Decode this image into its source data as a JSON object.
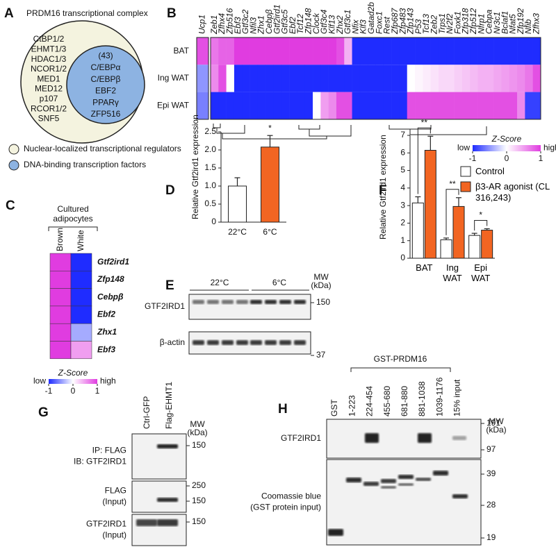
{
  "panels": {
    "A": {
      "letter": "A",
      "title": "PRDM16 transcriptional complex",
      "regulators": [
        "CtBP1/2",
        "EHMT1/3",
        "HDAC1/3",
        "NCOR1/2",
        "MED1",
        "MED12",
        "p107",
        "RCOR1/2",
        "SNF5"
      ],
      "factors": [
        "(43)",
        "C/EBPα",
        "C/EBPβ",
        "EBF2",
        "PPARγ",
        "ZFP516"
      ],
      "legend": [
        "Nuclear-localized transcriptional regulators",
        "DNA-binding transcription factors"
      ]
    },
    "B": {
      "letter": "B",
      "genes": [
        "Ucp1",
        "Zeb1",
        "Zfhx4",
        "Zfp516",
        "Ebf3",
        "Gtf3c2",
        "Nfil3",
        "Zhx1",
        "Cebpβ",
        "Gtf2ird1",
        "Gtf3c5",
        "Ebf2",
        "Tcf12",
        "Zfp148",
        "Clock",
        "Gtf3c4",
        "Klf13",
        "Zhx2",
        "Gtf3c1",
        "Nfix",
        "Klf3",
        "Gatad2b",
        "Foxc1",
        "Rest",
        "Zfp687",
        "Zfp483",
        "Zfp143",
        "P53",
        "Tcf13",
        "Zeb2",
        "Trps1",
        "Nr2f2",
        "Foxk1",
        "Zfp318",
        "Zfp512",
        "Nfrp1",
        "Cebpa",
        "Nr3c1",
        "Bclaf1",
        "Nfat5",
        "Zfp192",
        "Nfib",
        "Zfhx3"
      ],
      "rows": [
        "BAT",
        "Ing WAT",
        "Epi WAT"
      ],
      "values": [
        [
          0.9,
          0.7,
          0.8,
          0.8,
          1,
          1,
          1,
          1,
          1,
          1,
          1,
          1,
          1,
          1,
          1,
          1,
          1,
          0.9,
          0.4,
          -1,
          -1,
          -1,
          -1,
          -1,
          -1,
          -1,
          -1,
          -1,
          -1,
          -1,
          -1,
          -1,
          -1,
          -1,
          -1,
          -1,
          -1,
          -1,
          -1,
          -1,
          -1,
          -1,
          -1
        ],
        [
          -0.5,
          0.6,
          0.9,
          0,
          -1,
          -1,
          -1,
          -1,
          -1,
          -1,
          -1,
          -1,
          -1,
          -1,
          -1,
          -1,
          -1,
          -1,
          -1,
          -1,
          -1,
          -1,
          -1,
          -1,
          -1,
          -1,
          0,
          0.05,
          0.1,
          0.15,
          0.2,
          0.2,
          0.25,
          0.3,
          0.35,
          0.4,
          0.4,
          0.45,
          0.5,
          0.55,
          0.6,
          0.7,
          0.9
        ],
        [
          -0.6,
          -1,
          -1,
          -1,
          -1,
          -1,
          -1,
          -1,
          -1,
          -1,
          -1,
          -1,
          -1,
          -1,
          0,
          0.5,
          0.6,
          0.9,
          0.9,
          -1,
          -1,
          -1,
          -1,
          -1,
          -1,
          -1,
          0.9,
          0.9,
          0.9,
          0.9,
          0.9,
          0.9,
          0.9,
          0.9,
          0.9,
          0.9,
          0.9,
          0.9,
          0.9,
          0.9,
          0.6,
          -0.9,
          -0.9
        ]
      ],
      "colorbar": {
        "title": "Z-Score",
        "low": "low",
        "high": "high",
        "ticks": [
          -1,
          0,
          1
        ]
      }
    },
    "C": {
      "letter": "C",
      "header": [
        "Cultured",
        "adipocytes"
      ],
      "columns": [
        "Brown",
        "White"
      ],
      "genes": [
        "Gtf2ird1",
        "Zfp148",
        "Cebpβ",
        "Ebf2",
        "Zhx1",
        "Ebf3"
      ],
      "values": [
        [
          1,
          1,
          1,
          1,
          1,
          1
        ],
        [
          -1,
          -1,
          -1,
          -1,
          -0.4,
          0.5
        ]
      ],
      "colorbar": {
        "title": "Z-Score",
        "low": "low",
        "high": "high",
        "ticks": [
          -1,
          0,
          1
        ]
      }
    },
    "D": {
      "letter": "D"
    },
    "E": {
      "letter": "E",
      "header": [
        "22°C",
        "6°C"
      ],
      "mw": [
        "MW",
        "(kDa)"
      ],
      "blots": [
        {
          "label": [
            "GTF2IRD1"
          ],
          "ticks": [
            150
          ]
        },
        {
          "label": [
            "β-actin"
          ],
          "ticks": [
            37
          ]
        }
      ]
    },
    "F": {
      "letter": "F"
    },
    "G": {
      "letter": "G",
      "lanes": [
        "Ctrl-GFP",
        "Flag-EHMT1"
      ],
      "mw": [
        "MW",
        "(kDa)"
      ],
      "blots": [
        {
          "label": [
            "IP: FLAG",
            "IB: GTF2IRD1"
          ],
          "ticks": [
            150
          ]
        },
        {
          "label": [
            "FLAG",
            "(Input)"
          ],
          "ticks": [
            250,
            150
          ]
        },
        {
          "label": [
            "GTF2IRD1",
            "(Input)"
          ],
          "ticks": [
            150
          ]
        }
      ]
    },
    "H": {
      "letter": "H",
      "group": "GST-PRDM16",
      "lanes": [
        "GST",
        "1-223",
        "224-454",
        "455-680",
        "681-880",
        "881-1038",
        "1039-1176",
        "15% input"
      ],
      "mw": [
        "MW",
        "(kDa)"
      ],
      "blots": [
        {
          "label": [
            "GTF2IRD1"
          ],
          "ticks": [
            191,
            97
          ]
        },
        {
          "label": [
            "Coomassie blue",
            "(GST protein input)"
          ],
          "ticks": [
            39,
            28,
            19
          ]
        }
      ]
    }
  },
  "chart_data": [
    {
      "type": "bar",
      "ylabel": "Relative Gtf2ird1 expression",
      "categories": [
        "22°C",
        "6°C"
      ],
      "values": [
        1.0,
        2.08
      ],
      "errors": [
        0.23,
        0.32
      ],
      "colors": [
        "#ffffff",
        "#f26522"
      ],
      "ylim": [
        0,
        2.5
      ],
      "yticks": [
        0,
        0.5,
        {
          "value": 1,
          "label": "1.0"
        },
        1.5,
        {
          "value": 2,
          "label": "2.0"
        },
        2.5
      ],
      "annotations": [
        "*"
      ]
    },
    {
      "type": "grouped_bar",
      "ylabel": "Relative Gtf2ird1 expression",
      "categories": [
        "BAT",
        "Ing WAT",
        "Epi WAT"
      ],
      "series": [
        {
          "name": "Control",
          "color": "#ffffff",
          "values": [
            3.15,
            1.05,
            1.3
          ],
          "errors": [
            0.35,
            0.1,
            0.12
          ]
        },
        {
          "name": "β3-AR agonist (CL 316,243)",
          "color": "#f26522",
          "values": [
            6.15,
            2.95,
            1.6
          ],
          "errors": [
            0.8,
            0.5,
            0.08
          ]
        }
      ],
      "ylim": [
        0,
        7
      ],
      "yticks": [
        0,
        1,
        2,
        3,
        4,
        5,
        6,
        7
      ],
      "annotations": [
        "**",
        "**",
        "*"
      ]
    }
  ]
}
